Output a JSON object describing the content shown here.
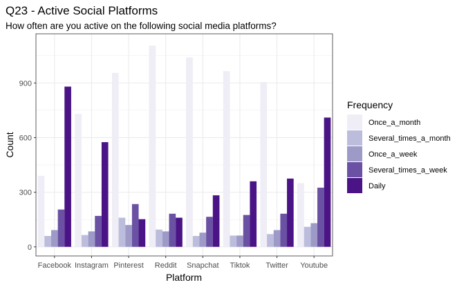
{
  "chart_data": {
    "type": "bar",
    "title": "Q23 - Active Social Platforms",
    "subtitle": "How often are you active on the following social media platforms?",
    "xlabel": "Platform",
    "ylabel": "Count",
    "ylim": [
      -50,
      1170
    ],
    "yticks": [
      0,
      300,
      600,
      900
    ],
    "grid": true,
    "legend_position": "right",
    "legend_title": "Frequency",
    "categories": [
      "Facebook",
      "Instagram",
      "Pinterest",
      "Reddit",
      "Snapchat",
      "Tiktok",
      "Twitter",
      "Youtube"
    ],
    "series": [
      {
        "name": "Once_a_month",
        "color": "#efedf5",
        "values": [
          390,
          730,
          955,
          1105,
          1040,
          965,
          905,
          350
        ]
      },
      {
        "name": "Several_times_a_month",
        "color": "#bcbddc",
        "values": [
          60,
          65,
          160,
          95,
          60,
          62,
          70,
          110
        ]
      },
      {
        "name": "Once_a_week",
        "color": "#9e9ac8",
        "values": [
          92,
          85,
          120,
          85,
          78,
          62,
          92,
          130
        ]
      },
      {
        "name": "Several_times_a_week",
        "color": "#6a51a3",
        "values": [
          205,
          170,
          235,
          182,
          165,
          175,
          182,
          325
        ]
      },
      {
        "name": "Daily",
        "color": "#4a1486",
        "values": [
          880,
          575,
          152,
          160,
          283,
          360,
          375,
          710
        ]
      }
    ]
  }
}
